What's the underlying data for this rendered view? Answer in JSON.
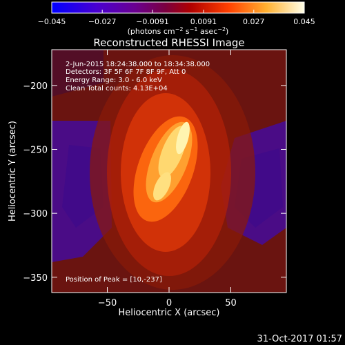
{
  "chart_data": {
    "type": "heatmap",
    "title": "Reconstructed RHESSI Image",
    "xlabel": "Heliocentric X (arcsec)",
    "ylabel": "Heliocentric Y (arcsec)",
    "xlim": [
      -95,
      95
    ],
    "ylim": [
      -362,
      -172
    ],
    "x_ticks": [
      -50,
      0,
      50
    ],
    "x_tick_labels": [
      "−50",
      "0",
      "50"
    ],
    "y_ticks": [
      -200,
      -250,
      -300,
      -350
    ],
    "y_tick_labels": [
      "−200",
      "−250",
      "−300",
      "−350"
    ],
    "colorbar": {
      "range": [
        -0.045,
        0.045
      ],
      "ticks": [
        -0.045,
        -0.027,
        -0.0091,
        0.0091,
        0.027,
        0.045
      ],
      "tick_labels": [
        "−0.045",
        "−0.027",
        "−0.0091",
        "0.0091",
        "0.027",
        "0.045"
      ],
      "units_prefix": "(photons cm",
      "units_exp1": "−2",
      "units_mid": " s",
      "units_exp2": "−1",
      "units_mid2": " asec",
      "units_exp3": "−2",
      "units_suffix": ")",
      "colors": [
        "#0000ff",
        "#5a00b4",
        "#7a0060",
        "#b00000",
        "#ff5a00",
        "#ffc040",
        "#ffffe8"
      ]
    },
    "info_lines": [
      " 2-Jun-2015 18:24:38.000 to 18:34:38.000",
      "Detectors: 3F 5F 6F 7F 8F 9F, Att 0",
      "Energy Range: 3.0 - 6.0 keV",
      "Clean     Total counts: 4.13E+04"
    ],
    "peak_label": "Position of Peak = [10,-237]",
    "peak": [
      10,
      -237
    ]
  },
  "timestamp": "31-Oct-2017 01:57"
}
